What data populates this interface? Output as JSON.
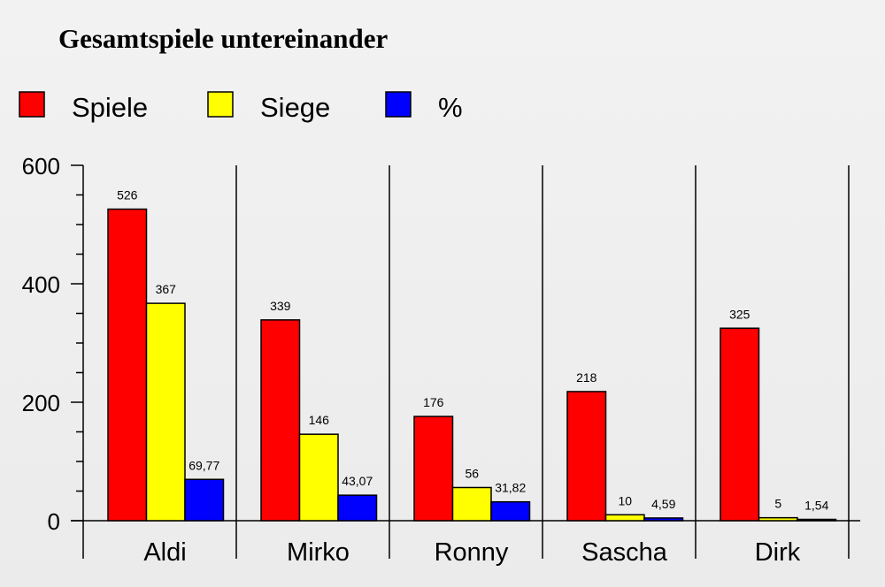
{
  "chart_data": {
    "type": "bar",
    "title": "Gesamtspiele untereinander",
    "categories": [
      "Aldi",
      "Mirko",
      "Ronny",
      "Sascha",
      "Dirk"
    ],
    "series": [
      {
        "name": "Spiele",
        "color": "#ff0000",
        "values": [
          526,
          339,
          176,
          218,
          325
        ],
        "labels": [
          "526",
          "339",
          "176",
          "218",
          "325"
        ]
      },
      {
        "name": "Siege",
        "color": "#ffff00",
        "values": [
          367,
          146,
          56,
          10,
          5
        ],
        "labels": [
          "367",
          "146",
          "56",
          "10",
          "5"
        ]
      },
      {
        "name": "%",
        "color": "#0000ff",
        "values": [
          69.77,
          43.07,
          31.82,
          4.59,
          1.54
        ],
        "labels": [
          "69,77",
          "43,07",
          "31,82",
          "4,59",
          "1,54"
        ]
      }
    ],
    "ylim": [
      0,
      600
    ],
    "yticks": [
      0,
      200,
      400,
      600
    ],
    "legend_position": "top-left",
    "grid": false
  }
}
